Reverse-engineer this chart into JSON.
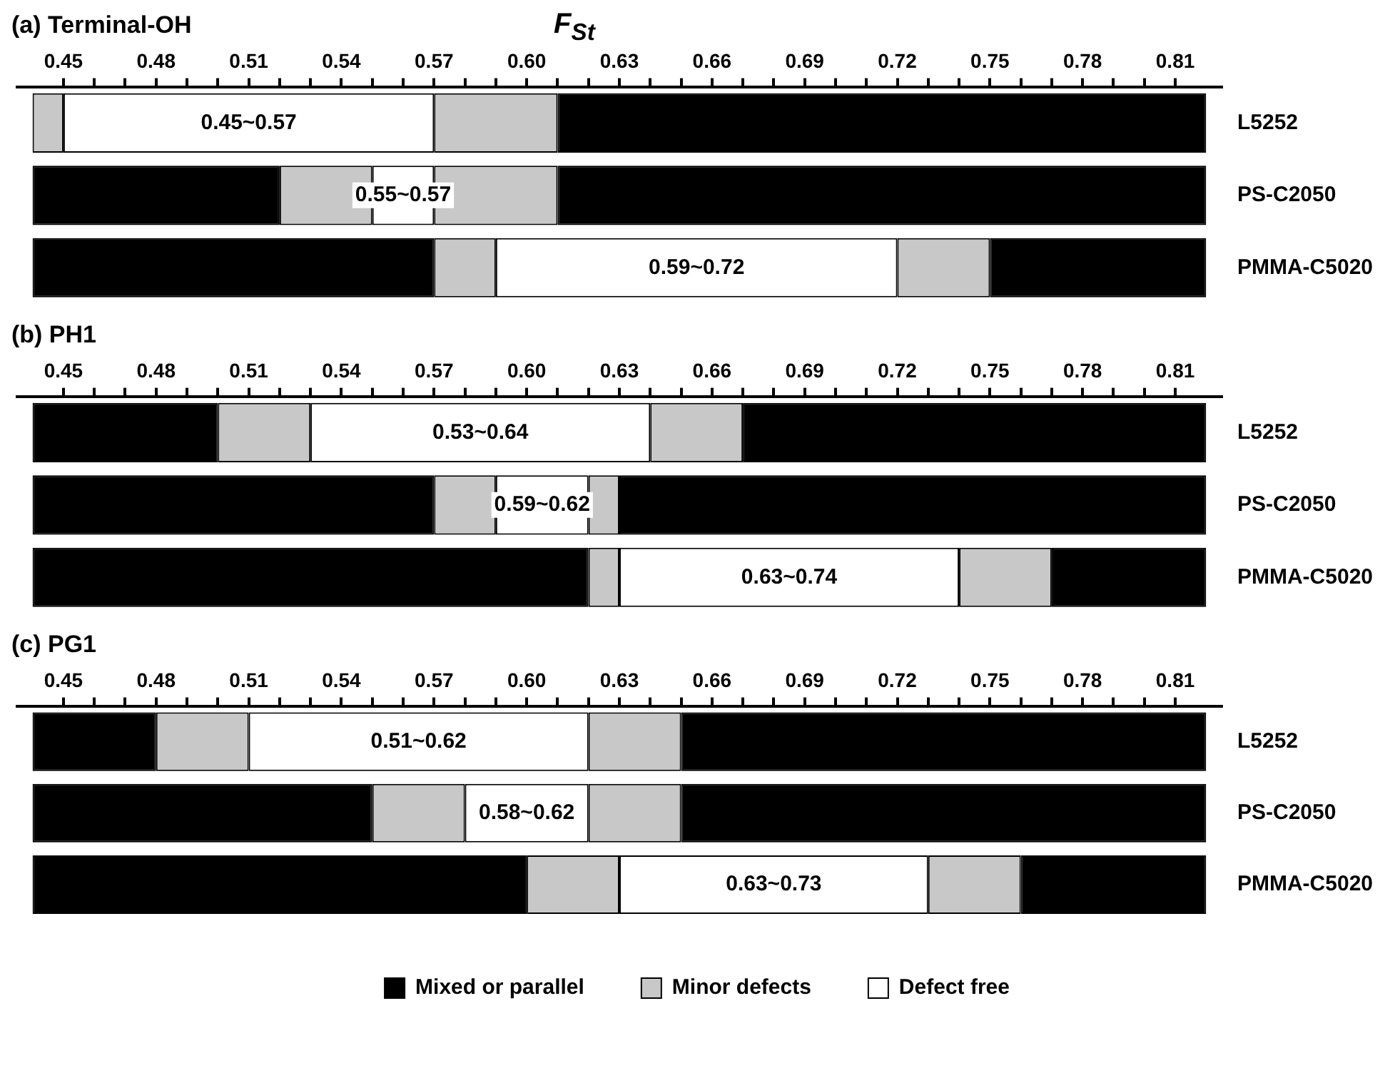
{
  "chart_data": [
    {
      "type": "bar",
      "orientation": "horizontal",
      "title": "(a) Terminal-OH",
      "xlabel": "F$_{St}$",
      "categories": [
        "L5252",
        "PS-C2050",
        "PMMA-C5020"
      ],
      "xlim": [
        0.435,
        0.825
      ],
      "xticks": [
        0.45,
        {
          "value": 0.46,
          "label": null
        },
        {
          "value": 0.47,
          "label": null
        },
        0.48,
        {
          "value": 0.49,
          "label": null
        },
        {
          "value": 0.5,
          "label": null
        },
        0.51,
        {
          "value": 0.52,
          "label": null
        },
        {
          "value": 0.53,
          "label": null
        },
        0.54,
        {
          "value": 0.55,
          "label": null
        },
        {
          "value": 0.56,
          "label": null
        },
        0.57,
        {
          "value": 0.58,
          "label": null
        },
        {
          "value": 0.59,
          "label": null
        },
        {
          "value": 0.6,
          "label": "0.60"
        },
        {
          "value": 0.61,
          "label": null
        },
        {
          "value": 0.62,
          "label": null
        },
        0.63,
        {
          "value": 0.64,
          "label": null
        },
        {
          "value": 0.65,
          "label": null
        },
        0.66,
        {
          "value": 0.67,
          "label": null
        },
        {
          "value": 0.68,
          "label": null
        },
        0.69,
        {
          "value": 0.7,
          "label": null
        },
        {
          "value": 0.71,
          "label": null
        },
        0.72,
        {
          "value": 0.73,
          "label": null
        },
        {
          "value": 0.74,
          "label": null
        },
        0.75,
        {
          "value": 0.76,
          "label": null
        },
        {
          "value": 0.77,
          "label": null
        },
        0.78,
        {
          "value": 0.79,
          "label": null
        },
        {
          "value": 0.8,
          "label": null
        },
        0.81
      ],
      "series": [
        {
          "color": "#000000",
          "base": [
            null,
            0.44,
            0.44
          ],
          "values": [
            null,
            0.08,
            0.13
          ]
        },
        {
          "color": "#c8c8c8",
          "base": [
            0.44,
            0.52,
            0.57
          ],
          "values": [
            0.01,
            0.03,
            0.02
          ]
        },
        {
          "color": "#ffffff",
          "base": [
            0.45,
            0.55,
            0.59
          ],
          "values": [
            0.12,
            0.02,
            0.13
          ]
        },
        {
          "color": "#c8c8c8",
          "base": [
            0.57,
            0.57,
            0.72
          ],
          "values": [
            0.04,
            0.04,
            0.03
          ]
        },
        {
          "color": "#000000",
          "base": [
            0.61,
            0.61,
            0.75
          ],
          "values": [
            0.21,
            0.21,
            0.07
          ]
        }
      ],
      "annotations": [
        "0.45~0.57",
        "0.55~0.57",
        "0.59~0.72"
      ]
    },
    {
      "type": "bar",
      "orientation": "horizontal",
      "title": "(b) PH1",
      "categories": [
        "L5252",
        "PS-C2050",
        "PMMA-C5020"
      ],
      "xlim": [
        0.435,
        0.825
      ],
      "xticks": [
        0.45,
        {
          "value": 0.46,
          "label": null
        },
        {
          "value": 0.47,
          "label": null
        },
        0.48,
        {
          "value": 0.49,
          "label": null
        },
        {
          "value": 0.5,
          "label": null
        },
        0.51,
        {
          "value": 0.52,
          "label": null
        },
        {
          "value": 0.53,
          "label": null
        },
        0.54,
        {
          "value": 0.55,
          "label": null
        },
        {
          "value": 0.56,
          "label": null
        },
        0.57,
        {
          "value": 0.58,
          "label": null
        },
        {
          "value": 0.59,
          "label": null
        },
        {
          "value": 0.6,
          "label": "0.60"
        },
        {
          "value": 0.61,
          "label": null
        },
        {
          "value": 0.62,
          "label": null
        },
        0.63,
        {
          "value": 0.64,
          "label": null
        },
        {
          "value": 0.65,
          "label": null
        },
        0.66,
        {
          "value": 0.67,
          "label": null
        },
        {
          "value": 0.68,
          "label": null
        },
        0.69,
        {
          "value": 0.7,
          "label": null
        },
        {
          "value": 0.71,
          "label": null
        },
        0.72,
        {
          "value": 0.73,
          "label": null
        },
        {
          "value": 0.74,
          "label": null
        },
        0.75,
        {
          "value": 0.76,
          "label": null
        },
        {
          "value": 0.77,
          "label": null
        },
        0.78,
        {
          "value": 0.79,
          "label": null
        },
        {
          "value": 0.8,
          "label": null
        },
        0.81
      ],
      "series": [
        {
          "color": "#000000",
          "base": [
            0.44,
            0.44,
            0.44
          ],
          "values": [
            0.06,
            0.13,
            0.18
          ]
        },
        {
          "color": "#c8c8c8",
          "base": [
            0.5,
            0.57,
            0.62
          ],
          "values": [
            0.03,
            0.02,
            0.01
          ]
        },
        {
          "color": "#ffffff",
          "base": [
            0.53,
            0.59,
            0.63
          ],
          "values": [
            0.11,
            0.03,
            0.11
          ]
        },
        {
          "color": "#c8c8c8",
          "base": [
            0.64,
            0.62,
            0.74
          ],
          "values": [
            0.03,
            0.01,
            0.03
          ]
        },
        {
          "color": "#000000",
          "base": [
            0.67,
            0.63,
            0.77
          ],
          "values": [
            0.15,
            0.19,
            0.05
          ]
        }
      ],
      "annotations": [
        "0.53~0.64",
        "0.59~0.62",
        "0.63~0.74"
      ]
    },
    {
      "type": "bar",
      "orientation": "horizontal",
      "title": "(c) PG1",
      "legend": "bottom",
      "categories": [
        "L5252",
        "PS-C2050",
        "PMMA-C5020"
      ],
      "xlim": [
        0.435,
        0.825
      ],
      "xticks": [
        0.45,
        {
          "value": 0.46,
          "label": null
        },
        {
          "value": 0.47,
          "label": null
        },
        0.48,
        {
          "value": 0.49,
          "label": null
        },
        {
          "value": 0.5,
          "label": null
        },
        0.51,
        {
          "value": 0.52,
          "label": null
        },
        {
          "value": 0.53,
          "label": null
        },
        0.54,
        {
          "value": 0.55,
          "label": null
        },
        {
          "value": 0.56,
          "label": null
        },
        0.57,
        {
          "value": 0.58,
          "label": null
        },
        {
          "value": 0.59,
          "label": null
        },
        {
          "value": 0.6,
          "label": "0.60"
        },
        {
          "value": 0.61,
          "label": null
        },
        {
          "value": 0.62,
          "label": null
        },
        0.63,
        {
          "value": 0.64,
          "label": null
        },
        {
          "value": 0.65,
          "label": null
        },
        0.66,
        {
          "value": 0.67,
          "label": null
        },
        {
          "value": 0.68,
          "label": null
        },
        0.69,
        {
          "value": 0.7,
          "label": null
        },
        {
          "value": 0.71,
          "label": null
        },
        0.72,
        {
          "value": 0.73,
          "label": null
        },
        {
          "value": 0.74,
          "label": null
        },
        0.75,
        {
          "value": 0.76,
          "label": null
        },
        {
          "value": 0.77,
          "label": null
        },
        0.78,
        {
          "value": 0.79,
          "label": null
        },
        {
          "value": 0.8,
          "label": null
        },
        0.81
      ],
      "series": [
        {
          "name": "Mixed or parallel",
          "color": "#000000",
          "base": [
            0.44,
            0.44,
            0.44
          ],
          "values": [
            0.04,
            0.11,
            0.16
          ]
        },
        {
          "name": "Minor defects",
          "color": "#c8c8c8",
          "base": [
            0.48,
            0.55,
            0.6
          ],
          "values": [
            0.03,
            0.03,
            0.03
          ]
        },
        {
          "name": "Defect free",
          "color": "#ffffff",
          "base": [
            0.51,
            0.58,
            0.63
          ],
          "values": [
            0.11,
            0.04,
            0.1
          ]
        },
        {
          "color": "#c8c8c8",
          "base": [
            0.62,
            0.62,
            0.73
          ],
          "values": [
            0.03,
            0.03,
            0.03
          ]
        },
        {
          "color": "#000000",
          "base": [
            0.65,
            0.65,
            0.76
          ],
          "values": [
            0.17,
            0.17,
            0.06
          ]
        }
      ],
      "annotations": [
        "0.51~0.62",
        "0.58~0.62",
        "0.63~0.73"
      ]
    }
  ]
}
